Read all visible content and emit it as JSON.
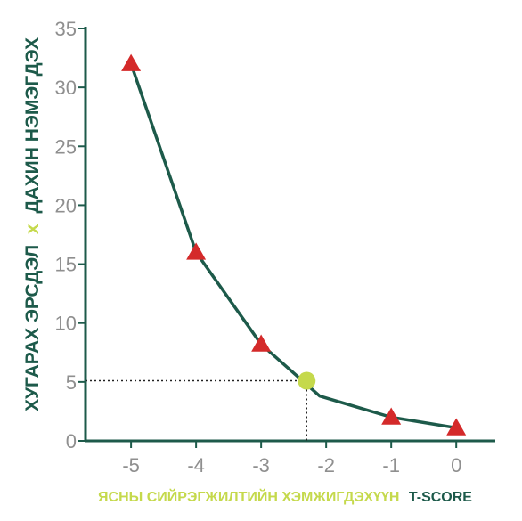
{
  "chart_data": {
    "type": "line",
    "x": [
      -5,
      -4,
      -3,
      -2.1,
      -1,
      0
    ],
    "y": [
      32,
      16,
      8.2,
      3.8,
      2,
      1.1
    ],
    "markers": [
      {
        "x": -5,
        "y": 32
      },
      {
        "x": -4,
        "y": 16
      },
      {
        "x": -3,
        "y": 8.2
      },
      {
        "x": -1,
        "y": 2
      },
      {
        "x": 0,
        "y": 1.1
      }
    ],
    "highlight": {
      "x": -2.3,
      "y": 5.1
    },
    "xlim": [
      -5.7,
      0.6
    ],
    "ylim": [
      0,
      35
    ],
    "xticks": [
      "-5",
      "-4",
      "-3",
      "-2",
      "-1",
      "0"
    ],
    "yticks": [
      "0",
      "5",
      "10",
      "15",
      "20",
      "25",
      "30",
      "35"
    ],
    "xlabel": {
      "part1": "ЯСНЫ СИЙРЭГЖИЛТИЙН ХЭМЖИГДЭХҮҮН",
      "part2": "T-SCORE"
    },
    "ylabel": {
      "part1": "ХУГАРАХ ЭРСДЭЛ",
      "part2": "x",
      "part3": "ДАХИН НЭМЭГДЭХ"
    },
    "grid": false,
    "colors": {
      "line": "#1d5a4a",
      "marker": "#d42a2a",
      "highlight": "#c5d94c",
      "axis": "#1d5a4a",
      "tick": "#8f8f8f",
      "xlabel_main": "#c5d94c"
    }
  }
}
